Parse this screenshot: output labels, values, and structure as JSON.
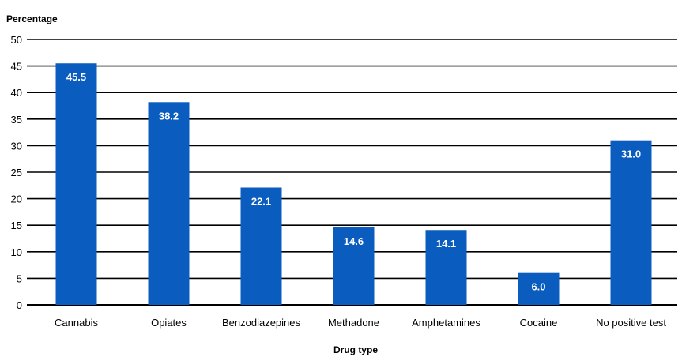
{
  "chart_data": {
    "type": "bar",
    "ylabel": "Percentage",
    "xlabel": "Drug type",
    "categories": [
      "Cannabis",
      "Opiates",
      "Benzodiazepines",
      "Methadone",
      "Amphetamines",
      "Cocaine",
      "No positive test"
    ],
    "values": [
      45.5,
      38.2,
      22.1,
      14.6,
      14.1,
      6.0,
      31.0
    ],
    "value_labels": [
      "45.5",
      "38.2",
      "22.1",
      "14.6",
      "14.1",
      "6.0",
      "31.0"
    ],
    "ylim": [
      0,
      50
    ],
    "yticks": [
      0,
      5,
      10,
      15,
      20,
      25,
      30,
      35,
      40,
      45,
      50
    ],
    "grid": true,
    "bar_color": "#0a5cbf",
    "grid_color": "#000000"
  }
}
